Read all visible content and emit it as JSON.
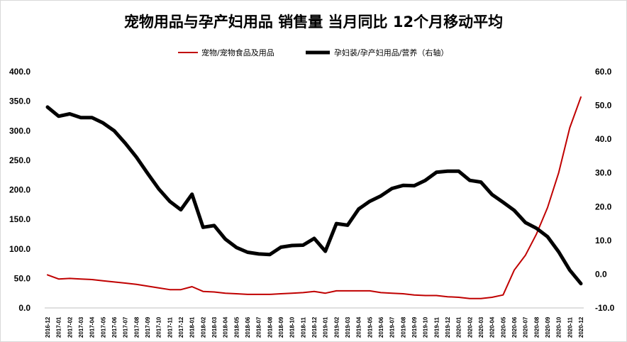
{
  "chart_data": {
    "type": "line",
    "title": "宠物用品与孕产妇用品 销售量 当月同比 12个月移动平均",
    "legend_position": "top-center",
    "grid": false,
    "x": [
      "2016-12",
      "2017-01",
      "2017-02",
      "2017-03",
      "2017-04",
      "2017-05",
      "2017-06",
      "2017-07",
      "2017-08",
      "2017-09",
      "2017-10",
      "2017-11",
      "2017-12",
      "2018-01",
      "2018-02",
      "2018-03",
      "2018-04",
      "2018-05",
      "2018-06",
      "2018-07",
      "2018-08",
      "2018-09",
      "2018-10",
      "2018-11",
      "2018-12",
      "2019-01",
      "2019-02",
      "2019-03",
      "2019-04",
      "2019-05",
      "2019-06",
      "2019-07",
      "2019-08",
      "2019-09",
      "2019-10",
      "2019-11",
      "2019-12",
      "2020-01",
      "2020-02",
      "2020-03",
      "2020-04",
      "2020-05",
      "2020-06",
      "2020-07",
      "2020-08",
      "2020-09",
      "2020-10",
      "2020-11",
      "2020-12"
    ],
    "y_left": {
      "ylim": [
        0,
        400
      ],
      "ticks": [
        "0.0",
        "50.0",
        "100.0",
        "150.0",
        "200.0",
        "250.0",
        "300.0",
        "350.0",
        "400.0"
      ]
    },
    "y_right": {
      "ylim": [
        -10,
        60
      ],
      "ticks": [
        "-10.0",
        "0.0",
        "10.0",
        "20.0",
        "30.0",
        "40.0",
        "50.0",
        "60.0"
      ]
    },
    "series": [
      {
        "name": "宠物/宠物食品及用品",
        "axis": "left",
        "color": "#c00000",
        "values": [
          56,
          49,
          50,
          49,
          48,
          46,
          44,
          42,
          40,
          37,
          34,
          31,
          31,
          36,
          28,
          27,
          25,
          24,
          23,
          23,
          23,
          24,
          25,
          26,
          28,
          25,
          29,
          29,
          29,
          29,
          26,
          25,
          24,
          22,
          21,
          21,
          19,
          18,
          16,
          16,
          18,
          22,
          64,
          89,
          125,
          170,
          229,
          305,
          357
        ]
      },
      {
        "name": "孕妇装/孕产妇用品/营养（右轴）",
        "axis": "right",
        "color": "#000000",
        "values": [
          49.5,
          46.8,
          47.5,
          46.4,
          46.4,
          44.8,
          42.5,
          38.8,
          34.7,
          29.9,
          25.3,
          21.6,
          19.1,
          23.7,
          13.9,
          14.4,
          10.4,
          7.9,
          6.5,
          6.0,
          5.8,
          8.0,
          8.5,
          8.6,
          10.6,
          6.8,
          15.0,
          14.5,
          19.3,
          21.6,
          23.2,
          25.4,
          26.3,
          26.2,
          27.8,
          30.2,
          30.5,
          30.5,
          27.8,
          27.3,
          23.6,
          21.3,
          18.9,
          15.3,
          13.6,
          11.1,
          6.6,
          1.2,
          -2.8
        ]
      }
    ]
  }
}
